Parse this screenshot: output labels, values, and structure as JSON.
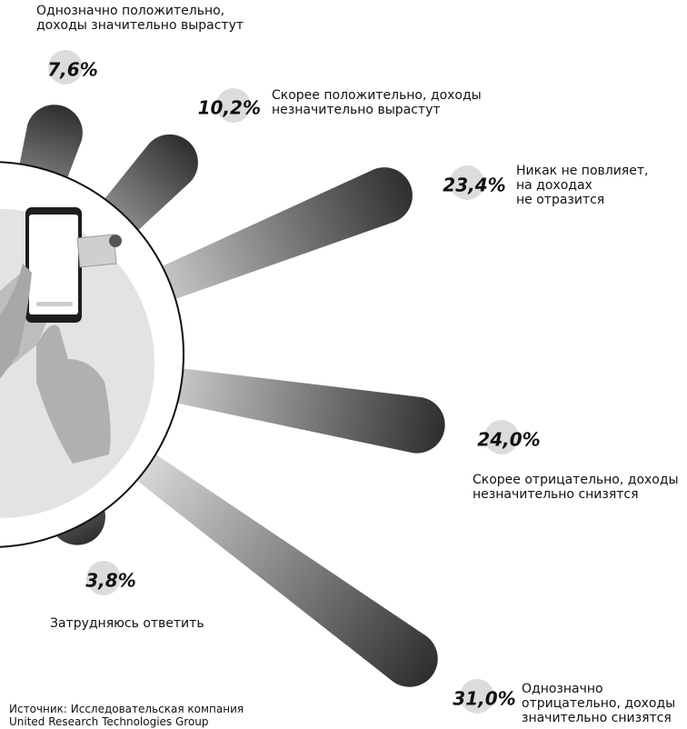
{
  "chart_data": {
    "type": "radial_bar",
    "categories": [
      "Однозначно положительно,\nдоходы значительно вырастут",
      "Скорее положительно, доходы\nнезначительно вырастут",
      "Никак не повлияет,\nна доходах\nне отразится",
      "Скорее отрицательно, доходы\nнезначительно снизятся",
      "Однозначно\nотрицательно, доходы\nзначительно снизятся",
      "Затрудняюсь ответить"
    ],
    "values": [
      7.6,
      10.2,
      23.4,
      24.0,
      31.0,
      3.8
    ],
    "value_labels": [
      "7,6%",
      "10,2%",
      "23,4%",
      "24,0%",
      "31,0%",
      "3,8%"
    ],
    "source": "Источник: Исследовательская компания\nUnited Research Technologies Group"
  }
}
